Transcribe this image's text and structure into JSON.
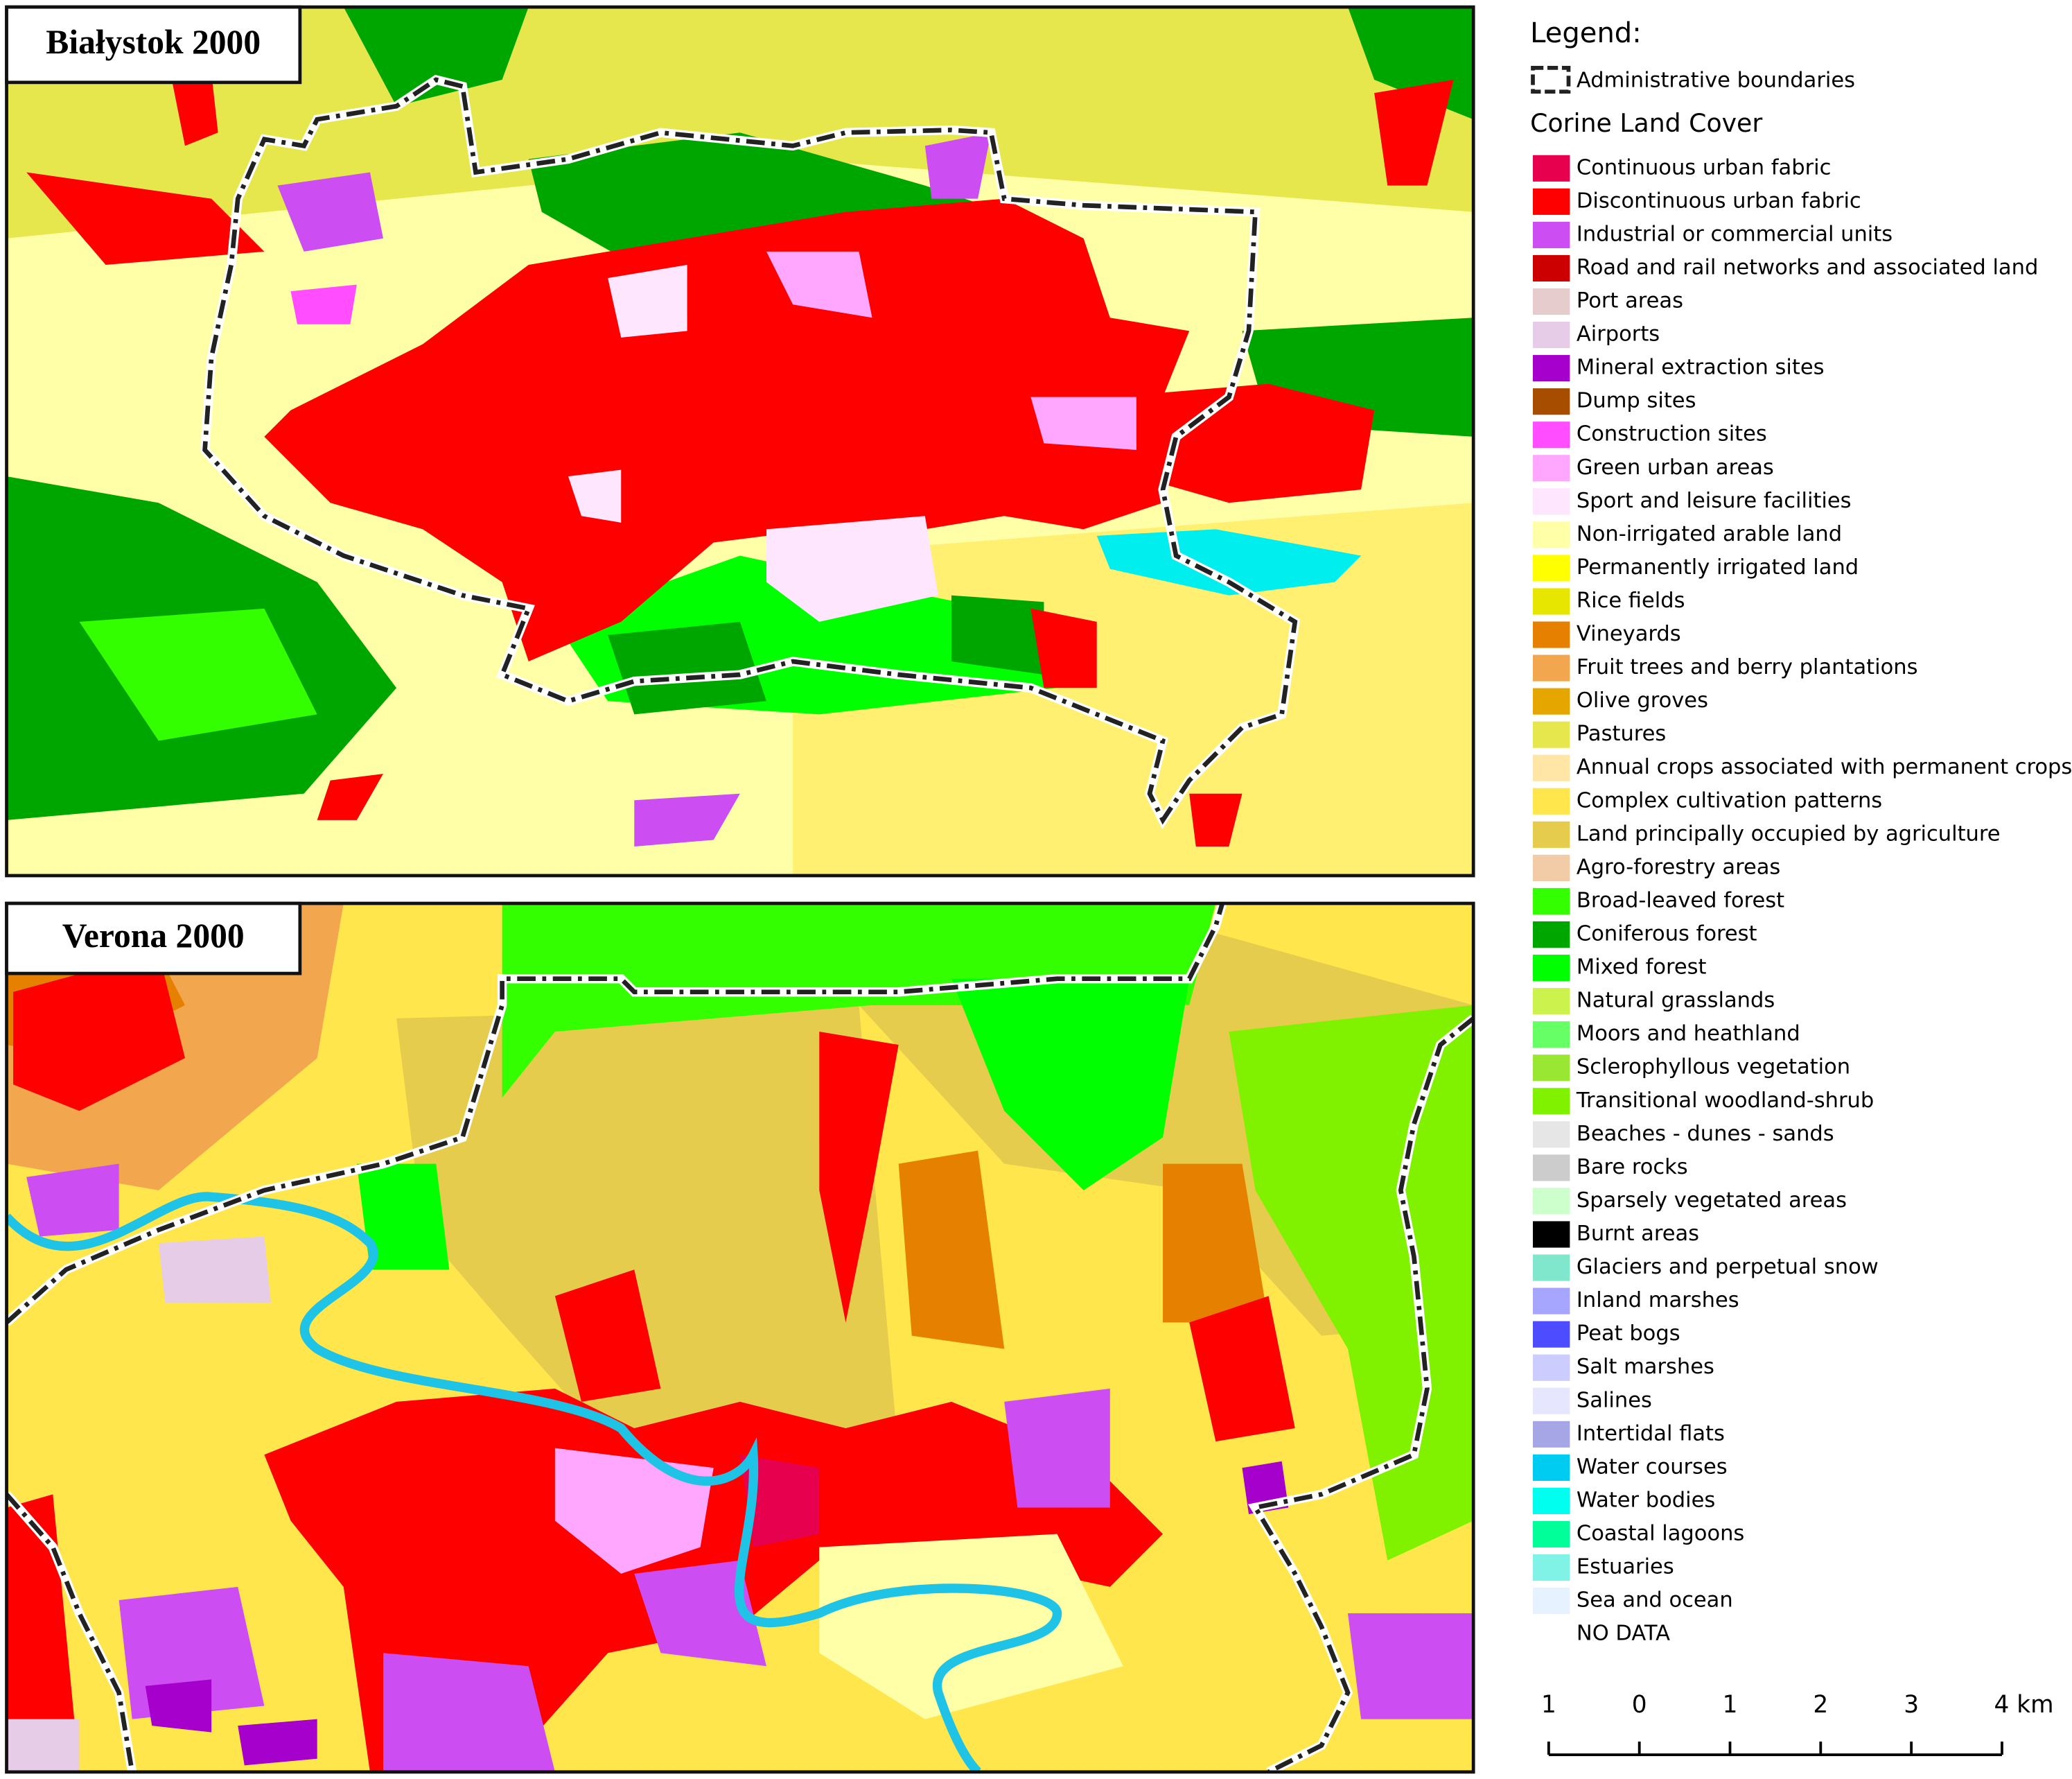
{
  "panels": [
    {
      "title": "Białystok 2000"
    },
    {
      "title": "Verona 2000"
    }
  ],
  "legend": {
    "title": "Legend:",
    "admin_label": "Administrative boundaries",
    "subtitle": "Corine Land Cover",
    "items": [
      {
        "label": "Continuous urban fabric",
        "color": "#e6004d"
      },
      {
        "label": "Discontinuous urban fabric",
        "color": "#ff0000"
      },
      {
        "label": "Industrial or commercial units",
        "color": "#cc4df2"
      },
      {
        "label": "Road and rail networks and associated land",
        "color": "#cc0000"
      },
      {
        "label": "Port areas",
        "color": "#e6cccc"
      },
      {
        "label": "Airports",
        "color": "#e6cce6"
      },
      {
        "label": "Mineral extraction sites",
        "color": "#a600cc"
      },
      {
        "label": "Dump sites",
        "color": "#a64d00"
      },
      {
        "label": "Construction sites",
        "color": "#ff4dff"
      },
      {
        "label": "Green urban areas",
        "color": "#ffa6ff"
      },
      {
        "label": "Sport and leisure facilities",
        "color": "#ffe6ff"
      },
      {
        "label": "Non-irrigated arable land",
        "color": "#ffffa8"
      },
      {
        "label": "Permanently irrigated land",
        "color": "#ffff00"
      },
      {
        "label": "Rice fields",
        "color": "#e6e600"
      },
      {
        "label": "Vineyards",
        "color": "#e68000"
      },
      {
        "label": "Fruit trees and berry plantations",
        "color": "#f2a64d"
      },
      {
        "label": "Olive groves",
        "color": "#e6a600"
      },
      {
        "label": "Pastures",
        "color": "#e6e64d"
      },
      {
        "label": "Annual crops associated with permanent crops",
        "color": "#ffe6a6"
      },
      {
        "label": "Complex cultivation patterns",
        "color": "#ffe64d"
      },
      {
        "label": "Land principally occupied by agriculture",
        "color": "#e6cc4d"
      },
      {
        "label": "Agro-forestry areas",
        "color": "#f2cca6"
      },
      {
        "label": "Broad-leaved forest",
        "color": "#33ff00"
      },
      {
        "label": "Coniferous forest",
        "color": "#00a600"
      },
      {
        "label": "Mixed forest",
        "color": "#00ff00"
      },
      {
        "label": "Natural grasslands",
        "color": "#ccf24d"
      },
      {
        "label": "Moors and heathland",
        "color": "#66ff66"
      },
      {
        "label": "Sclerophyllous vegetation",
        "color": "#99e633"
      },
      {
        "label": "Transitional woodland-shrub",
        "color": "#80f200"
      },
      {
        "label": "Beaches - dunes - sands",
        "color": "#e6e6e6"
      },
      {
        "label": "Bare rocks",
        "color": "#cccccc"
      },
      {
        "label": "Sparsely vegetated areas",
        "color": "#ccffcc"
      },
      {
        "label": "Burnt areas",
        "color": "#000000"
      },
      {
        "label": "Glaciers and perpetual snow",
        "color": "#80e6cc"
      },
      {
        "label": "Inland marshes",
        "color": "#a6a6ff"
      },
      {
        "label": "Peat bogs",
        "color": "#4d4dff"
      },
      {
        "label": "Salt marshes",
        "color": "#ccccff"
      },
      {
        "label": "Salines",
        "color": "#e6e6ff"
      },
      {
        "label": "Intertidal flats",
        "color": "#a6a6e6"
      },
      {
        "label": "Water courses",
        "color": "#00ccf2"
      },
      {
        "label": "Water bodies",
        "color": "#00ffee"
      },
      {
        "label": "Coastal lagoons",
        "color": "#00ff99"
      },
      {
        "label": "Estuaries",
        "color": "#80f2e6"
      },
      {
        "label": "Sea and ocean",
        "color": "#e6f2ff"
      },
      {
        "label": "NO DATA",
        "color": "#ffffff"
      }
    ]
  },
  "scale_bar": {
    "labels": [
      "1",
      "0",
      "1",
      "2",
      "3",
      "4 km"
    ]
  }
}
